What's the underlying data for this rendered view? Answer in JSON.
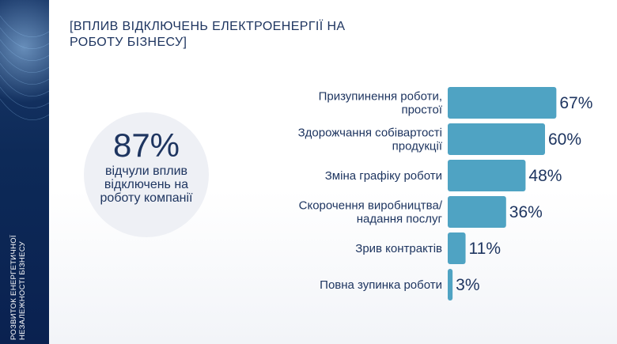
{
  "side_label": {
    "line1": "РОЗВИТОК ЕНЕРГЕТИЧНОЇ",
    "line2": "НЕЗАЛЕЖНОСТІ БІЗНЕСУ"
  },
  "title": {
    "line1": "[ВПЛИВ ВІДКЛЮЧЕНЬ ЕЛЕКТРОЕНЕРГІЇ НА",
    "line2": "РОБОТУ БІЗНЕСУ]"
  },
  "highlight": {
    "value": "87%",
    "caption": "відчули вплив відключень на роботу компанії"
  },
  "colors": {
    "bar": "#4fa3c3",
    "text": "#1e3560",
    "strip": "#0d2a58"
  },
  "chart_data": {
    "type": "bar",
    "orientation": "horizontal",
    "categories": [
      [
        "Призупинення роботи,",
        "простої"
      ],
      [
        "Здорожчання собівартості",
        "продукції"
      ],
      [
        "Зміна графіку роботи"
      ],
      [
        "Скорочення виробництва/",
        "надання послуг"
      ],
      [
        "Зрив контрактів"
      ],
      [
        "Повна зупинка роботи"
      ]
    ],
    "values": [
      67,
      60,
      48,
      36,
      11,
      3
    ],
    "value_labels": [
      "67%",
      "60%",
      "48%",
      "36%",
      "11%",
      "3%"
    ],
    "xlim": [
      0,
      100
    ],
    "grid": false,
    "legend": "none"
  }
}
